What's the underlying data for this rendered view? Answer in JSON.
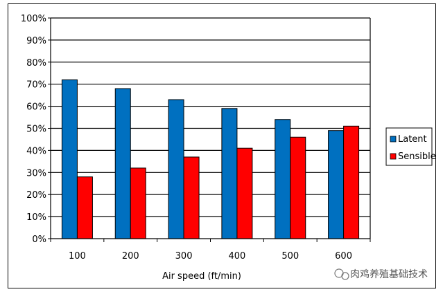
{
  "chart_data": {
    "type": "bar",
    "categories": [
      "100",
      "200",
      "300",
      "400",
      "500",
      "600"
    ],
    "series": [
      {
        "name": "Latent",
        "values": [
          72,
          68,
          63,
          59,
          54,
          49
        ],
        "color": "#0070C0"
      },
      {
        "name": "Sensible",
        "values": [
          28,
          32,
          37,
          41,
          46,
          51
        ],
        "color": "#FF0000"
      }
    ],
    "xlabel": "Air speed (ft/min)",
    "ylabel": "",
    "ylim": [
      0,
      100
    ],
    "y_ticks": [
      "0%",
      "10%",
      "20%",
      "30%",
      "40%",
      "50%",
      "60%",
      "70%",
      "80%",
      "90%",
      "100%"
    ],
    "grid": true,
    "legend": "right"
  },
  "watermark": {
    "text": "肉鸡养殖基础技术",
    "icon": "wechat-icon"
  }
}
